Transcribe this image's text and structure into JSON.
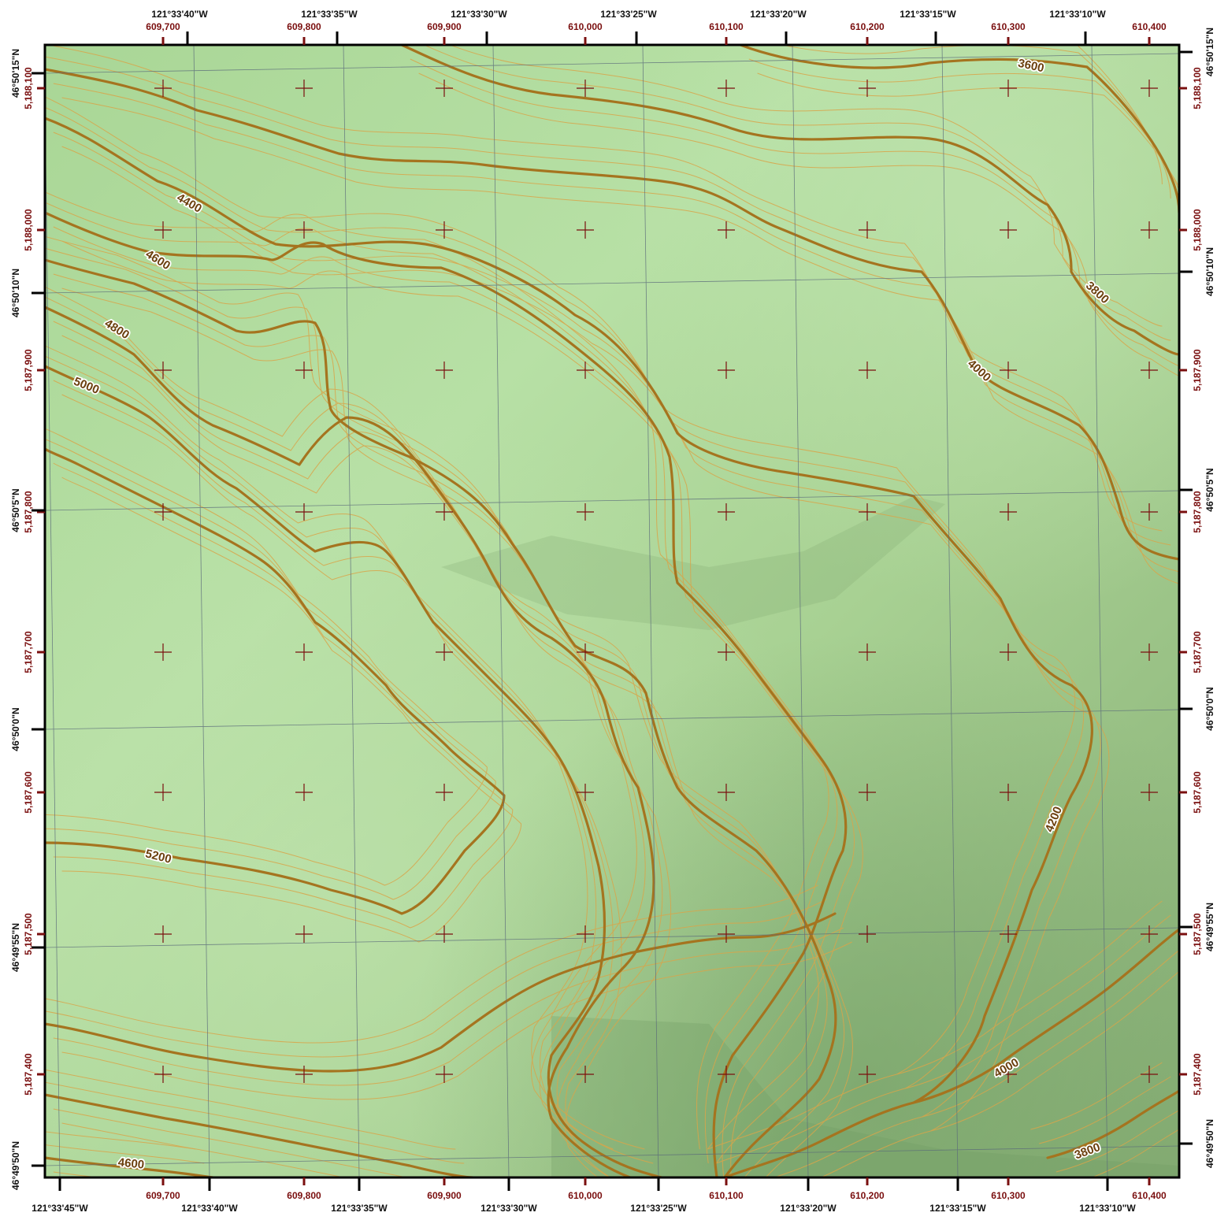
{
  "map": {
    "top_lon_labels": [
      "121°33'40\"W",
      "121°33'35\"W",
      "121°33'30\"W",
      "121°33'25\"W",
      "121°33'20\"W",
      "121°33'15\"W",
      "121°33'10\"W"
    ],
    "bottom_lon_labels": [
      "121°33'45\"W",
      "121°33'40\"W",
      "121°33'35\"W",
      "121°33'30\"W",
      "121°33'25\"W",
      "121°33'20\"W",
      "121°33'15\"W",
      "121°33'10\"W"
    ],
    "easting_labels": [
      "609,700",
      "609,800",
      "609,900",
      "610,000",
      "610,100",
      "610,200",
      "610,300",
      "610,400"
    ],
    "left_lat_labels": [
      "46°50'15\"N",
      "46°50'10\"N",
      "46°50'5\"N",
      "46°50'0\"N",
      "46°49'55\"N",
      "46°49'50\"N"
    ],
    "right_lat_labels": [
      "46°50'15\"N",
      "46°50'10\"N",
      "46°50'5\"N",
      "46°50'0\"N",
      "46°49'55\"N",
      "46°49'50\"N"
    ],
    "northing_labels": [
      "5,188,100",
      "5,188,000",
      "5,187,900",
      "5,187,800",
      "5,187,700",
      "5,187,600",
      "5,187,500",
      "5,187,400"
    ],
    "contour_labels": [
      "3600",
      "4400",
      "4600",
      "4800",
      "5000",
      "3800",
      "4000",
      "4200",
      "5200",
      "4000",
      "4600",
      "3800"
    ],
    "colors": {
      "terrain_light": "#b9e2a8",
      "terrain_mid": "#a6d092",
      "terrain_dark": "#7ea870",
      "index_contour": "#a5741f",
      "minor_contour": "#d9a54a",
      "grid_cross": "#7a0f0f",
      "graticule": "#5a6a7a",
      "frame": "#000000"
    }
  }
}
